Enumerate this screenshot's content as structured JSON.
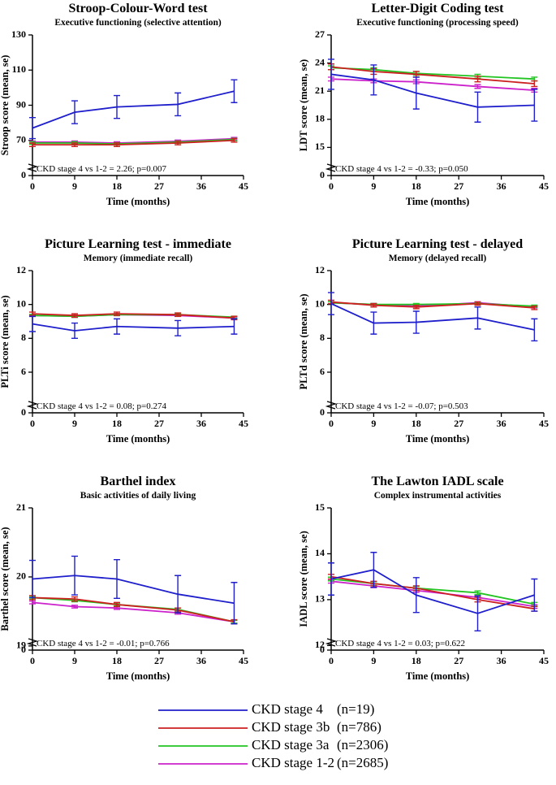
{
  "legend": {
    "series": [
      {
        "name": "CKD stage 4",
        "n": "(n=19)",
        "color": "#1f1fcc"
      },
      {
        "name": "CKD stage 3b",
        "n": "(n=786)",
        "color": "#cc1f1f"
      },
      {
        "name": "CKD stage 3a",
        "n": "(n=2306)",
        "color": "#22c422"
      },
      {
        "name": "CKD stage 1-2",
        "n": "(n=2685)",
        "color": "#cc22cc"
      }
    ]
  },
  "chart_data": [
    {
      "type": "line",
      "title": "Stroop-Colour-Word test",
      "subtitle": "Executive functioning (selective attention)",
      "ylabel": "Stroop score (mean, se)",
      "xlabel": "Time (months)",
      "annotation": "CKD stage 4 vs 1-2 = 2.26; p=0.007",
      "x": [
        0,
        9,
        18,
        31,
        43
      ],
      "xlim": [
        0,
        45
      ],
      "xticks": [
        0,
        9,
        18,
        27,
        36,
        45
      ],
      "ylim": [
        0,
        130
      ],
      "ybreak": [
        0,
        50
      ],
      "yticks": [
        0,
        70,
        90,
        110,
        130
      ],
      "series": [
        {
          "values": [
            77,
            86,
            89,
            90.5,
            98
          ],
          "errors": [
            6,
            6.5,
            6.5,
            6.5,
            6.5
          ]
        },
        {
          "values": [
            67.5,
            67.5,
            67.5,
            68.5,
            70
          ],
          "errors": [
            1,
            1,
            1,
            1,
            1
          ]
        },
        {
          "values": [
            68.5,
            68.5,
            68,
            69,
            70.5
          ],
          "errors": [
            0.7,
            0.7,
            0.7,
            0.7,
            0.7
          ]
        },
        {
          "values": [
            69,
            69,
            68.5,
            69.5,
            71
          ],
          "errors": [
            0.7,
            0.7,
            0.7,
            0.7,
            0.7
          ]
        }
      ]
    },
    {
      "type": "line",
      "title": "Letter-Digit Coding test",
      "subtitle": "Executive functioning  (processing speed)",
      "ylabel": "LDT score (mean, se)",
      "xlabel": "Time (months)",
      "annotation": "CKD stage 4 vs 1-2 = -0.33; p=0.050",
      "x": [
        0,
        9,
        18,
        31,
        43
      ],
      "xlim": [
        0,
        45
      ],
      "xticks": [
        0,
        9,
        18,
        27,
        36,
        45
      ],
      "ylim": [
        0,
        27
      ],
      "ybreak": [
        0,
        12
      ],
      "yticks": [
        0,
        15,
        18,
        21,
        24,
        27
      ],
      "series": [
        {
          "values": [
            22.8,
            22.2,
            20.8,
            19.3,
            19.5
          ],
          "errors": [
            1.6,
            1.6,
            1.7,
            1.6,
            1.7
          ]
        },
        {
          "values": [
            23.6,
            23.1,
            22.8,
            22.3,
            21.8
          ],
          "errors": [
            0.3,
            0.3,
            0.3,
            0.3,
            0.3
          ]
        },
        {
          "values": [
            23.5,
            23.3,
            22.9,
            22.6,
            22.3
          ],
          "errors": [
            0.2,
            0.2,
            0.2,
            0.2,
            0.2
          ]
        },
        {
          "values": [
            22.3,
            22.1,
            22,
            21.5,
            21.1
          ],
          "errors": [
            0.2,
            0.2,
            0.2,
            0.2,
            0.2
          ]
        }
      ]
    },
    {
      "type": "line",
      "title": "Picture Learning test - immediate",
      "subtitle": "Memory (immediate recall)",
      "ylabel": "PLTi score (mean, se)",
      "xlabel": "Time (months)",
      "annotation": "CKD stage 4 vs 1-2 = 0.08; p=0.274",
      "x": [
        0,
        9,
        18,
        31,
        43
      ],
      "xlim": [
        0,
        45
      ],
      "xticks": [
        0,
        9,
        18,
        27,
        36,
        45
      ],
      "ylim": [
        0,
        12
      ],
      "ybreak": [
        0,
        3.6
      ],
      "yticks": [
        0,
        6,
        8,
        10,
        12
      ],
      "series": [
        {
          "values": [
            8.85,
            8.45,
            8.7,
            8.6,
            8.7
          ],
          "errors": [
            0.45,
            0.45,
            0.45,
            0.45,
            0.45
          ]
        },
        {
          "values": [
            9.45,
            9.35,
            9.45,
            9.4,
            9.2
          ],
          "errors": [
            0.1,
            0.1,
            0.1,
            0.1,
            0.1
          ]
        },
        {
          "values": [
            9.35,
            9.3,
            9.4,
            9.4,
            9.25
          ],
          "errors": [
            0.06,
            0.06,
            0.06,
            0.06,
            0.06
          ]
        },
        {
          "values": [
            9.35,
            9.3,
            9.4,
            9.35,
            9.2
          ],
          "errors": [
            0.06,
            0.06,
            0.06,
            0.06,
            0.06
          ]
        }
      ]
    },
    {
      "type": "line",
      "title": "Picture Learning test - delayed",
      "subtitle": "Memory (delayed recall)",
      "ylabel": "PLTd score (mean, se)",
      "xlabel": "Time (months)",
      "annotation": "CKD stage 4 vs 1-2 = -0.07; p=0.503",
      "x": [
        0,
        9,
        18,
        31,
        43
      ],
      "xlim": [
        0,
        45
      ],
      "xticks": [
        0,
        9,
        18,
        27,
        36,
        45
      ],
      "ylim": [
        0,
        12
      ],
      "ybreak": [
        0,
        3.6
      ],
      "yticks": [
        0,
        6,
        8,
        10,
        12
      ],
      "series": [
        {
          "values": [
            10.05,
            8.9,
            8.95,
            9.2,
            8.5
          ],
          "errors": [
            0.65,
            0.65,
            0.65,
            0.65,
            0.65
          ]
        },
        {
          "values": [
            10.15,
            9.95,
            9.85,
            10.05,
            9.8
          ],
          "errors": [
            0.1,
            0.1,
            0.1,
            0.1,
            0.1
          ]
        },
        {
          "values": [
            10.1,
            10,
            10,
            10.05,
            9.9
          ],
          "errors": [
            0.06,
            0.06,
            0.06,
            0.06,
            0.06
          ]
        },
        {
          "values": [
            10.1,
            10,
            9.9,
            10.1,
            9.85
          ],
          "errors": [
            0.06,
            0.06,
            0.06,
            0.06,
            0.06
          ]
        }
      ]
    },
    {
      "type": "line",
      "title": "Barthel index",
      "subtitle": "Basic activities of daily living",
      "ylabel": "Barthel score (mean, se)",
      "xlabel": "Time (months)",
      "annotation": "CKD stage 4 vs 1-2 = -0.01; p=0.766",
      "x": [
        0,
        9,
        18,
        31,
        43
      ],
      "xlim": [
        0,
        45
      ],
      "xticks": [
        0,
        9,
        18,
        27,
        36,
        45
      ],
      "ylim": [
        0,
        21
      ],
      "ybreak": [
        0,
        18.94
      ],
      "yticks": [
        0,
        19,
        20,
        21
      ],
      "series": [
        {
          "values": [
            19.97,
            20.02,
            19.97,
            19.75,
            19.62
          ],
          "errors": [
            0.27,
            0.28,
            0.28,
            0.27,
            0.3
          ]
        },
        {
          "values": [
            19.7,
            19.68,
            19.6,
            19.52,
            19.35
          ],
          "errors": [
            0.03,
            0.03,
            0.03,
            0.03,
            0.03
          ]
        },
        {
          "values": [
            19.7,
            19.66,
            19.6,
            19.53,
            19.35
          ],
          "errors": [
            0.02,
            0.02,
            0.02,
            0.02,
            0.02
          ]
        },
        {
          "values": [
            19.63,
            19.57,
            19.55,
            19.48,
            19.35
          ],
          "errors": [
            0.02,
            0.02,
            0.02,
            0.02,
            0.02
          ]
        }
      ]
    },
    {
      "type": "line",
      "title": "The Lawton IADL scale",
      "subtitle": "Complex instrumental activities",
      "ylabel": "IADL score (mean, se)",
      "xlabel": "Time (months)",
      "annotation": "CKD stage 4 vs 1-2 = 0.03; p=0.622",
      "x": [
        0,
        9,
        18,
        31,
        43
      ],
      "xlim": [
        0,
        45
      ],
      "xticks": [
        0,
        9,
        18,
        27,
        36,
        45
      ],
      "ylim": [
        0,
        15
      ],
      "ybreak": [
        0,
        11.9
      ],
      "yticks": [
        0,
        12,
        13,
        14,
        15
      ],
      "series": [
        {
          "values": [
            13.45,
            13.65,
            13.1,
            12.7,
            13.1
          ],
          "errors": [
            0.35,
            0.38,
            0.38,
            0.38,
            0.35
          ]
        },
        {
          "values": [
            13.5,
            13.35,
            13.25,
            13,
            12.8
          ],
          "errors": [
            0.05,
            0.05,
            0.05,
            0.05,
            0.05
          ]
        },
        {
          "values": [
            13.45,
            13.35,
            13.25,
            13.15,
            12.9
          ],
          "errors": [
            0.04,
            0.04,
            0.04,
            0.04,
            0.04
          ]
        },
        {
          "values": [
            13.4,
            13.3,
            13.2,
            13.05,
            12.85
          ],
          "errors": [
            0.04,
            0.04,
            0.04,
            0.04,
            0.04
          ]
        }
      ]
    }
  ]
}
